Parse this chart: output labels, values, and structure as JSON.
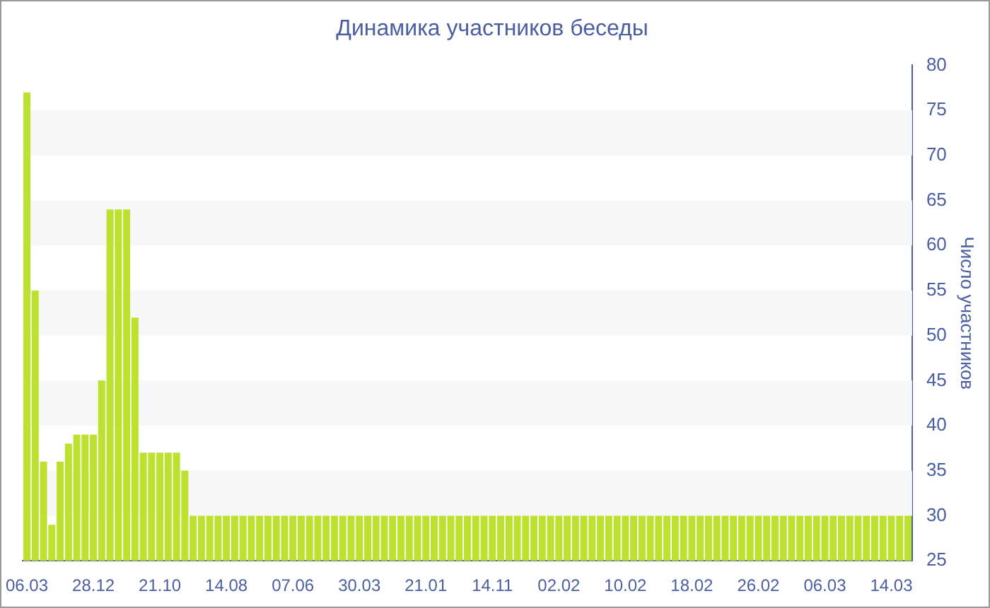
{
  "chart_data": {
    "type": "bar",
    "title": "Динамика участников беседы",
    "ylabel": "Число участников",
    "categories": [
      "06.03",
      null,
      null,
      null,
      null,
      null,
      null,
      null,
      "28.12",
      null,
      null,
      null,
      null,
      null,
      null,
      null,
      "21.10",
      null,
      null,
      null,
      null,
      null,
      null,
      null,
      "14.08",
      null,
      null,
      null,
      null,
      null,
      null,
      null,
      "07.06",
      null,
      null,
      null,
      null,
      null,
      null,
      null,
      "30.03",
      null,
      null,
      null,
      null,
      null,
      null,
      null,
      "21.01",
      null,
      null,
      null,
      null,
      null,
      null,
      null,
      "14.11",
      null,
      null,
      null,
      null,
      null,
      null,
      null,
      "02.02",
      null,
      null,
      null,
      null,
      null,
      null,
      null,
      "10.02",
      null,
      null,
      null,
      null,
      null,
      null,
      null,
      "18.02",
      null,
      null,
      null,
      null,
      null,
      null,
      null,
      "26.02",
      null,
      null,
      null,
      null,
      null,
      null,
      null,
      "06.03",
      null,
      null,
      null,
      null,
      null,
      null,
      null,
      "14.03",
      null,
      null
    ],
    "values": [
      77,
      55,
      36,
      29,
      36,
      38,
      39,
      39,
      39,
      45,
      64,
      64,
      64,
      52,
      37,
      37,
      37,
      37,
      37,
      35,
      30,
      30,
      30,
      30,
      30,
      30,
      30,
      30,
      30,
      30,
      30,
      30,
      30,
      30,
      30,
      30,
      30,
      30,
      30,
      30,
      30,
      30,
      30,
      30,
      30,
      30,
      30,
      30,
      30,
      30,
      30,
      30,
      30,
      30,
      30,
      30,
      30,
      30,
      30,
      30,
      30,
      30,
      30,
      30,
      30,
      30,
      30,
      30,
      30,
      30,
      30,
      30,
      30,
      30,
      30,
      30,
      30,
      30,
      30,
      30,
      30,
      30,
      30,
      30,
      30,
      30,
      30,
      30,
      30,
      30,
      30,
      30,
      30,
      30,
      30,
      30,
      30,
      30,
      30,
      30,
      30,
      30,
      30,
      30,
      30,
      30,
      30
    ],
    "color": "#bde12f",
    "ylim": [
      25,
      80
    ],
    "yticks": [
      25,
      30,
      35,
      40,
      45,
      50,
      55,
      60,
      65,
      70,
      75,
      80
    ],
    "bands": [
      {
        "axis": "y",
        "from": 30,
        "to": 35,
        "color": "#f7f7f7"
      },
      {
        "axis": "y",
        "from": 40,
        "to": 45,
        "color": "#f7f7f7"
      },
      {
        "axis": "y",
        "from": 50,
        "to": 55,
        "color": "#f7f7f7"
      },
      {
        "axis": "y",
        "from": 60,
        "to": 65,
        "color": "#f7f7f7"
      },
      {
        "axis": "y",
        "from": 70,
        "to": 75,
        "color": "#f7f7f7"
      }
    ],
    "legend": false
  }
}
